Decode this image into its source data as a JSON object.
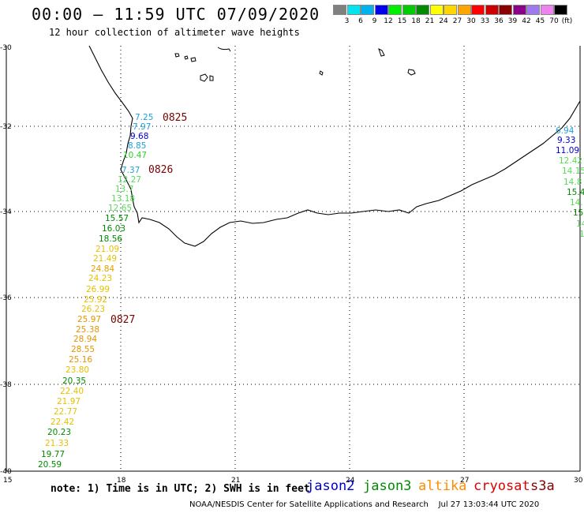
{
  "header": {
    "title": "00:00 – 11:59 UTC 07/09/2020",
    "subtitle": "12 hour collection of altimeter wave heights"
  },
  "colorbar": {
    "unit": "(ft)",
    "colors": [
      "#808080",
      "#00e5ee",
      "#00b2ee",
      "#0000ee",
      "#00ee00",
      "#00cd00",
      "#008b00",
      "#ffff00",
      "#ffd700",
      "#ffa500",
      "#ff0000",
      "#cd0000",
      "#8b0000",
      "#8b008b",
      "#9f79ee",
      "#ee82ee",
      "#000000"
    ],
    "labels": [
      "3",
      "6",
      "9",
      "12",
      "15",
      "18",
      "21",
      "24",
      "27",
      "30",
      "33",
      "36",
      "39",
      "42",
      "45",
      "70"
    ]
  },
  "axes": {
    "lat_labels": [
      "-30",
      "-32",
      "-34",
      "-36",
      "-38",
      "-40"
    ],
    "lon_labels": [
      "15",
      "18",
      "21",
      "24",
      "27",
      "30"
    ]
  },
  "passes": [
    "0825",
    "0826",
    "0827"
  ],
  "wave_labels": [
    {
      "v": "7.25",
      "c": "#1e9fd6"
    },
    {
      "v": "7.97",
      "c": "#1e9fd6"
    },
    {
      "v": "9.68",
      "c": "#0000cc"
    },
    {
      "v": "8.85",
      "c": "#1e9fd6"
    },
    {
      "v": "10.47",
      "c": "#33cc33"
    },
    {
      "v": "7.37",
      "c": "#1e9fd6"
    },
    {
      "v": "12.27",
      "c": "#55dd55"
    },
    {
      "v": "13.7",
      "c": "#55dd55"
    },
    {
      "v": "13.18",
      "c": "#55dd55"
    },
    {
      "v": "12.65",
      "c": "#55dd55"
    },
    {
      "v": "15.57",
      "c": "#008b00"
    },
    {
      "v": "16.03",
      "c": "#008b00"
    },
    {
      "v": "18.56",
      "c": "#008b00"
    },
    {
      "v": "21.09",
      "c": "#e5c100"
    },
    {
      "v": "21.49",
      "c": "#e5c100"
    },
    {
      "v": "24.84",
      "c": "#e5a000"
    },
    {
      "v": "24.23",
      "c": "#e5c100"
    },
    {
      "v": "26.99",
      "c": "#e5c100"
    },
    {
      "v": "25.92",
      "c": "#e5c100"
    },
    {
      "v": "26.23",
      "c": "#e5c100"
    },
    {
      "v": "25.97",
      "c": "#e59400"
    },
    {
      "v": "25.38",
      "c": "#e59400"
    },
    {
      "v": "28.94",
      "c": "#e59400"
    },
    {
      "v": "28.55",
      "c": "#e59400"
    },
    {
      "v": "25.16",
      "c": "#e59400"
    },
    {
      "v": "23.80",
      "c": "#e5c100"
    },
    {
      "v": "20.35",
      "c": "#008b00"
    },
    {
      "v": "22.40",
      "c": "#e5c100"
    },
    {
      "v": "21.97",
      "c": "#e5c100"
    },
    {
      "v": "22.77",
      "c": "#e5c100"
    },
    {
      "v": "22.42",
      "c": "#e5c100"
    },
    {
      "v": "20.23",
      "c": "#008b00"
    },
    {
      "v": "21.33",
      "c": "#e5c100"
    },
    {
      "v": "19.77",
      "c": "#008b00"
    },
    {
      "v": "20.59",
      "c": "#008b00"
    },
    {
      "v": "6.94",
      "c": "#1e9fd6"
    },
    {
      "v": "9.33",
      "c": "#0000cc"
    },
    {
      "v": "11.09",
      "c": "#0000cc"
    },
    {
      "v": "12.42",
      "c": "#55dd55"
    },
    {
      "v": "14.15",
      "c": "#55dd55"
    },
    {
      "v": "14.8",
      "c": "#55dd55"
    },
    {
      "v": "15.4",
      "c": "#008b00"
    },
    {
      "v": "14.",
      "c": "#55dd55"
    },
    {
      "v": "15.",
      "c": "#008b00"
    },
    {
      "v": "14",
      "c": "#55dd55"
    },
    {
      "v": "1",
      "c": "#55dd55"
    }
  ],
  "note": "note: 1) Time is in UTC; 2) SWH is in feet",
  "satellites": [
    {
      "name": "jason2",
      "color": "#0000cc"
    },
    {
      "name": "jason3",
      "color": "#008b00"
    },
    {
      "name": "altika",
      "color": "#ff8c00"
    },
    {
      "name": "cryosat",
      "color": "#dd0000"
    },
    {
      "name": "s3a",
      "color": "#8b0000"
    }
  ],
  "credit": "NOAA/NESDIS Center for Satellite Applications and Research    Jul 27 13:03:44 UTC 2020"
}
